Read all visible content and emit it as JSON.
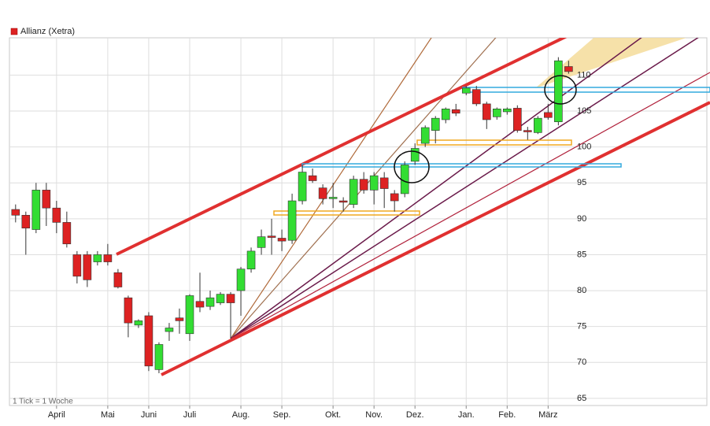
{
  "chart_data": {
    "type": "candlestick",
    "title": "Allianz (Xetra)",
    "note": "1 Tick = 1 Woche",
    "up_color": "#33dd33",
    "down_color": "#dd2222",
    "grid": true,
    "x": [
      0,
      1,
      2,
      3,
      4,
      5,
      6,
      7,
      8,
      9,
      10,
      11,
      12,
      13,
      14,
      15,
      16,
      17,
      18,
      19,
      20,
      21,
      22,
      23,
      24,
      25,
      26,
      27,
      28,
      29,
      30,
      31,
      32,
      33,
      34,
      35,
      36,
      37,
      38,
      39,
      40,
      41,
      42,
      43,
      44,
      45,
      46,
      47,
      48,
      49,
      50,
      51,
      52,
      53,
      54
    ],
    "open": [
      91.3,
      90.5,
      88.5,
      94,
      91.5,
      89.5,
      85,
      85,
      84,
      85,
      82.5,
      79,
      75.2,
      76.5,
      69,
      74.3,
      76.2,
      74,
      78.5,
      77.8,
      78.3,
      79.5,
      80,
      83,
      86,
      87.6,
      87.3,
      87,
      92.5,
      96,
      94.3,
      92.8,
      92.5,
      92,
      95.5,
      94,
      95.7,
      93.5,
      93.5,
      98,
      100.5,
      102.3,
      103.8,
      105.2,
      107.5,
      108,
      106,
      104.2,
      104.9,
      105.4,
      102.3,
      102,
      104.8,
      103.5,
      111.2
    ],
    "high": [
      92,
      91,
      95,
      95,
      92.5,
      91,
      85.5,
      85.5,
      85.5,
      86.5,
      83,
      79.3,
      76,
      77,
      72.8,
      75.5,
      77.5,
      79.5,
      82.5,
      80,
      79.8,
      79.8,
      83.3,
      86,
      88.5,
      90,
      88.5,
      93.5,
      97.5,
      97,
      94.8,
      95,
      93,
      96,
      96.5,
      96.5,
      96.5,
      94,
      98,
      100.5,
      103,
      104.3,
      105.5,
      106,
      108.5,
      108.5,
      106.3,
      105.5,
      105.5,
      105.8,
      102.8,
      104.3,
      106,
      112.5,
      112
    ],
    "low": [
      89.5,
      85,
      88,
      89,
      88,
      86,
      81,
      80.5,
      83.5,
      83.5,
      80.3,
      73.5,
      74.8,
      68.8,
      68.5,
      73,
      74,
      73,
      77,
      77.3,
      78,
      73.3,
      76.5,
      82.5,
      85,
      85,
      85.5,
      86.5,
      92,
      95,
      92,
      91.5,
      91,
      91.5,
      93.5,
      92,
      91.5,
      91,
      93,
      97.5,
      100,
      100.5,
      103.3,
      104.3,
      107.2,
      105.7,
      102.5,
      103.8,
      104.5,
      102,
      101,
      101.8,
      103.8,
      103,
      110.2
    ],
    "close": [
      90.5,
      88.7,
      94,
      91.5,
      89.5,
      86.5,
      82,
      81.5,
      85,
      84,
      80.5,
      75.5,
      75.8,
      69.5,
      72.5,
      74.8,
      75.8,
      79.3,
      77.7,
      79,
      79.5,
      78.3,
      83,
      85.5,
      87.5,
      87.4,
      86.9,
      92.5,
      96.5,
      95.3,
      92.8,
      93,
      92.3,
      95.5,
      94,
      96,
      94.2,
      92.5,
      97.5,
      99.8,
      102.7,
      104,
      105.3,
      104.7,
      108.2,
      106,
      103.8,
      105.3,
      105.3,
      102.3,
      102.1,
      104,
      104.1,
      112,
      110.5
    ],
    "xlim": [
      -0.6,
      67.5
    ],
    "ylim": [
      64,
      115.2
    ],
    "xticks": [
      {
        "value": 4,
        "label": "April"
      },
      {
        "value": 9,
        "label": "Mai"
      },
      {
        "value": 13,
        "label": "Juni"
      },
      {
        "value": 17,
        "label": "Juli"
      },
      {
        "value": 22,
        "label": "Aug."
      },
      {
        "value": 26,
        "label": "Sep."
      },
      {
        "value": 31,
        "label": "Okt."
      },
      {
        "value": 35,
        "label": "Nov."
      },
      {
        "value": 39,
        "label": "Dez."
      },
      {
        "value": 44,
        "label": "Jan."
      },
      {
        "value": 48,
        "label": "Feb."
      },
      {
        "value": 52,
        "label": "März"
      }
    ],
    "yticks": [
      65,
      70,
      75,
      80,
      85,
      90,
      95,
      100,
      105,
      110
    ]
  }
}
